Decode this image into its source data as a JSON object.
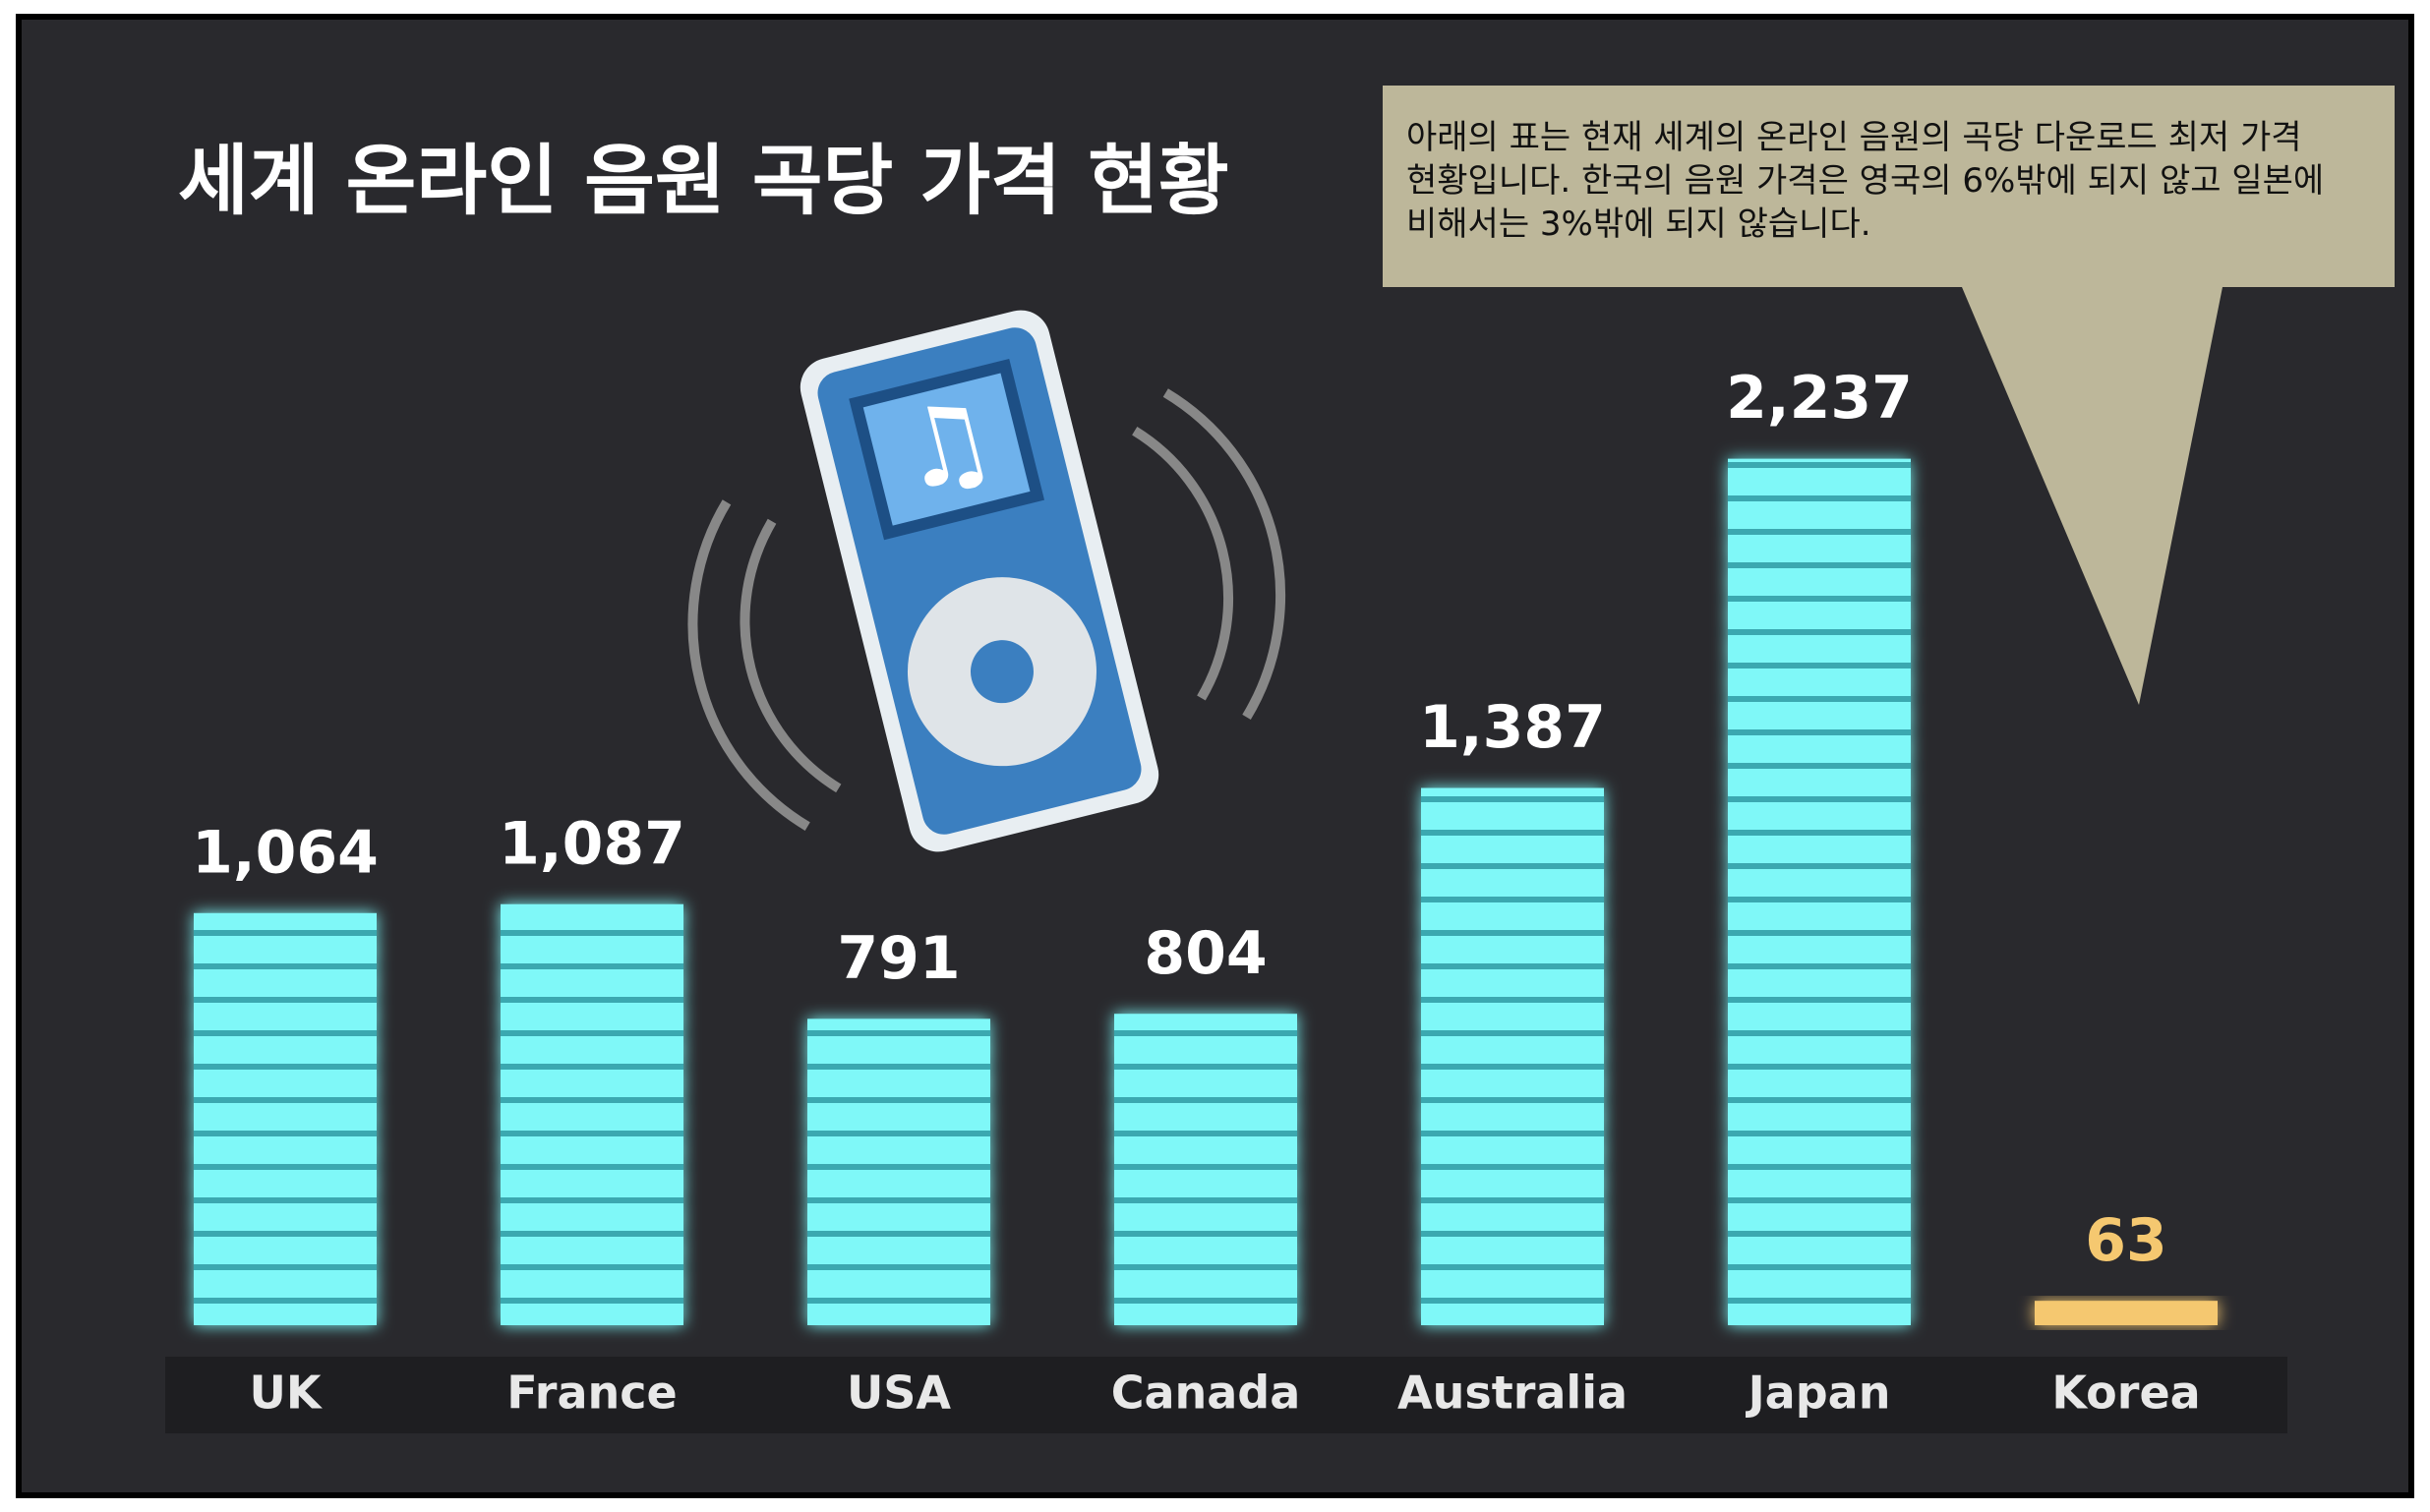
{
  "chart_data": {
    "type": "bar",
    "title": "세계 온라인 음원 곡당 가격 현황",
    "annotation": "아래의 표는 현재 세계의 온라인 음원의 곡당 다운로드 최저 가격 현황입니다. 한국의 음원 가격은 영국의 6%밖에 되지 않고 일본에 비해서는 3%밖에 되지 않습니다.",
    "categories": [
      "UK",
      "France",
      "USA",
      "Canada",
      "Australia",
      "Japan",
      "Korea"
    ],
    "values": [
      1064,
      1087,
      791,
      804,
      1387,
      2237,
      63
    ],
    "value_labels": [
      "1,064",
      "1,087",
      "791",
      "804",
      "1,387",
      "2,237",
      "63"
    ],
    "colors": [
      "#7ff8f8",
      "#7ff8f8",
      "#7ff8f8",
      "#7ff8f8",
      "#7ff8f8",
      "#7ff8f8",
      "#f5c870"
    ]
  }
}
